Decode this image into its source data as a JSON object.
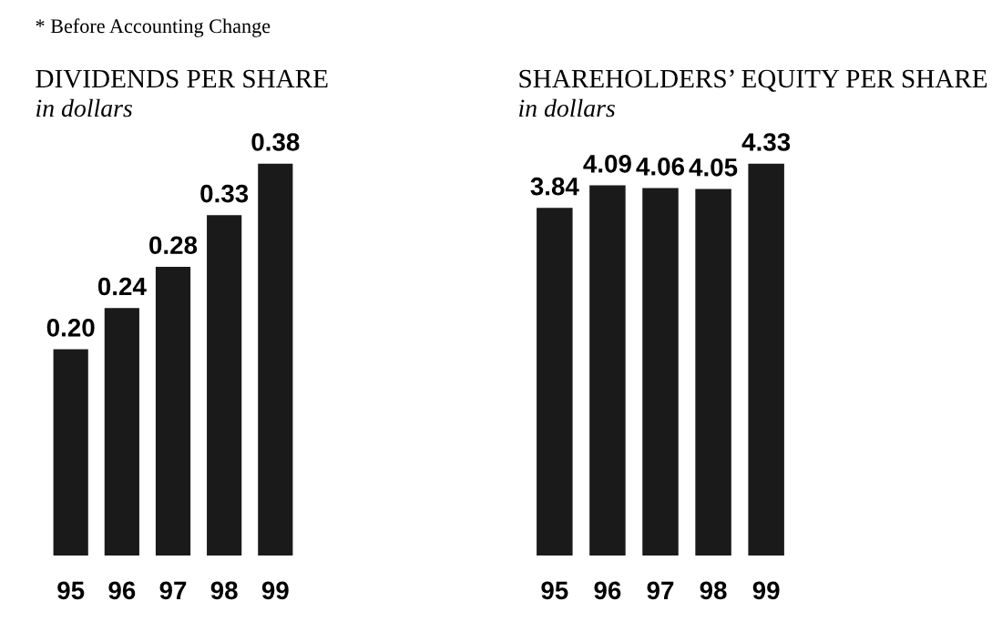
{
  "chart_data": [
    {
      "type": "bar",
      "title": "DIVIDENDS PER SHARE",
      "subtitle": "in dollars",
      "annotations": [
        "* Before Accounting Change"
      ],
      "categories": [
        "95",
        "96",
        "97",
        "98",
        "99"
      ],
      "values": [
        0.2,
        0.24,
        0.28,
        0.33,
        0.38
      ],
      "value_labels": [
        "0.20",
        "0.24",
        "0.28",
        "0.33",
        "0.38"
      ],
      "color": "#1a1a1a",
      "tick_labels": "x"
    },
    {
      "type": "bar",
      "title": "SHAREHOLDERS’ EQUITY PER SHARE",
      "subtitle": "in dollars",
      "categories": [
        "95",
        "96",
        "97",
        "98",
        "99"
      ],
      "values": [
        3.84,
        4.09,
        4.06,
        4.05,
        4.33
      ],
      "value_labels": [
        "3.84",
        "4.09",
        "4.06",
        "4.05",
        "4.33"
      ],
      "color": "#1a1a1a",
      "tick_labels": "x"
    }
  ]
}
